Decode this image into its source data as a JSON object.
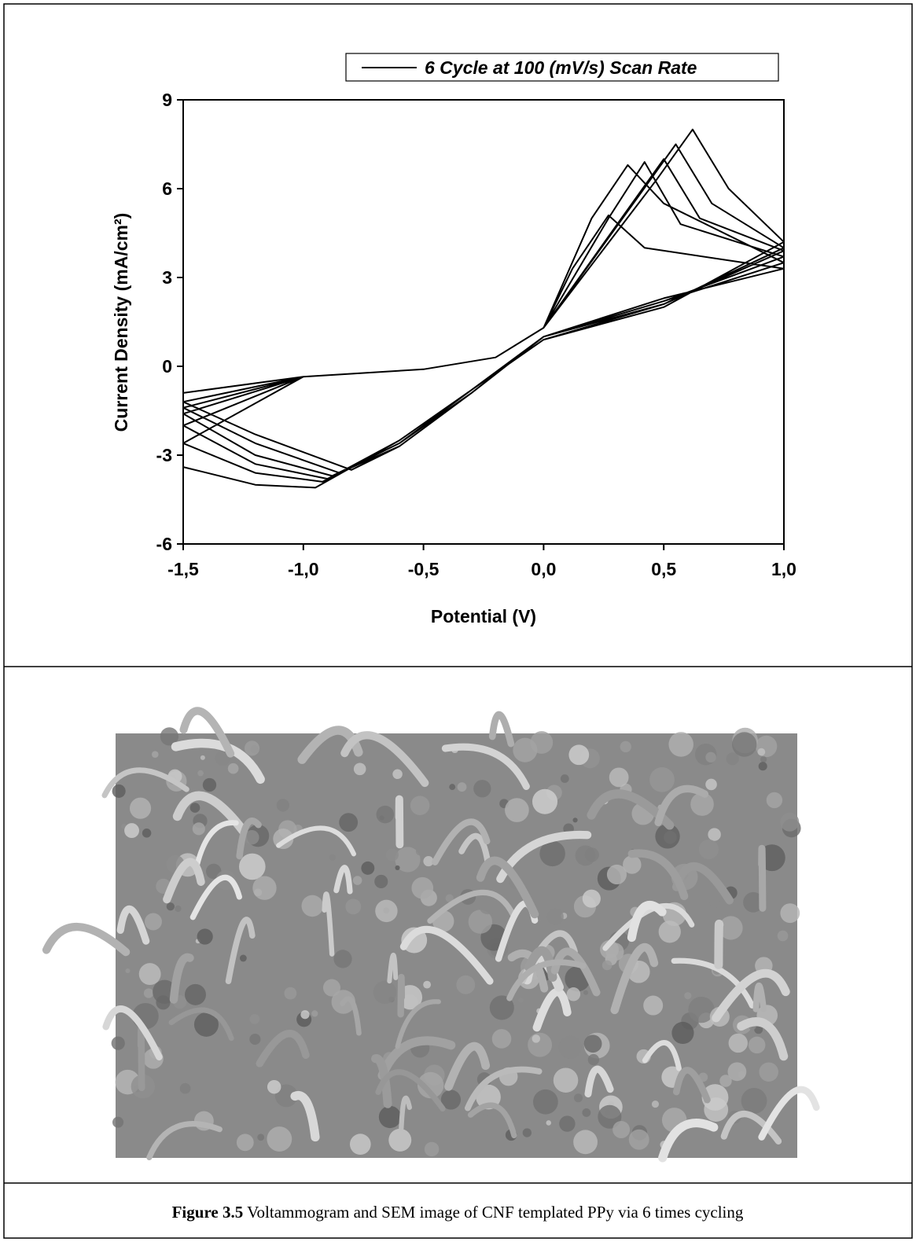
{
  "chart_data": {
    "type": "line",
    "xlabel": "Potential (V)",
    "ylabel": "Current Density (mA/cm²)",
    "xlim": [
      -1.5,
      1.0
    ],
    "ylim": [
      -6,
      9
    ],
    "xticks": [
      {
        "value": -1.5,
        "label": "-1,5"
      },
      {
        "value": -1.0,
        "label": "-1,0"
      },
      {
        "value": -0.5,
        "label": "-0,5"
      },
      {
        "value": 0.0,
        "label": "0,0"
      },
      {
        "value": 0.5,
        "label": "0,5"
      },
      {
        "value": 1.0,
        "label": "1,0"
      }
    ],
    "yticks": [
      -6,
      -3,
      0,
      3,
      6,
      9
    ],
    "legend": "top-right",
    "series": [
      {
        "name": "6 Cycle at 100 (mV/s) Scan Rate",
        "color": "#000000",
        "x": [
          -1.5,
          -1.0,
          -0.5,
          -0.2,
          0.0,
          0.12,
          0.27,
          0.42,
          1.0,
          0.5,
          0.0,
          -0.3,
          -0.6,
          -0.8,
          -1.2,
          -1.5,
          -1.0,
          -0.5,
          -0.2,
          0.0,
          0.2,
          0.35,
          0.5,
          1.0,
          0.5,
          0.0,
          -0.3,
          -0.6,
          -0.85,
          -1.2,
          -1.5,
          -1.0,
          -0.5,
          -0.2,
          0.0,
          0.27,
          0.42,
          0.57,
          1.0,
          0.5,
          0.0,
          -0.3,
          -0.6,
          -0.88,
          -1.2,
          -1.5,
          -1.0,
          -0.5,
          -0.2,
          0.0,
          0.35,
          0.5,
          0.65,
          1.0,
          0.5,
          0.0,
          -0.3,
          -0.6,
          -0.9,
          -1.2,
          -1.5,
          -1.0,
          -0.5,
          -0.2,
          0.0,
          0.4,
          0.55,
          0.7,
          1.0,
          0.5,
          0.0,
          -0.3,
          -0.6,
          -0.92,
          -1.2,
          -1.5,
          -1.0,
          -0.5,
          -0.2,
          0.0,
          0.47,
          0.62,
          0.77,
          1.0,
          0.5,
          0.0,
          -0.3,
          -0.6,
          -0.95,
          -1.2,
          -1.5
        ],
        "values": [
          -0.9,
          -0.35,
          -0.1,
          0.3,
          1.3,
          3.3,
          5.1,
          4.0,
          3.3,
          2.3,
          1.0,
          -0.9,
          -2.7,
          -3.5,
          -2.3,
          -1.2,
          -0.35,
          -0.1,
          0.3,
          1.3,
          5.0,
          6.8,
          5.5,
          3.5,
          2.2,
          1.0,
          -0.9,
          -2.7,
          -3.6,
          -2.6,
          -1.4,
          -0.35,
          -0.1,
          0.3,
          1.3,
          5.0,
          6.9,
          4.8,
          3.7,
          2.2,
          1.0,
          -0.9,
          -2.6,
          -3.7,
          -3.0,
          -1.6,
          -0.35,
          -0.1,
          0.3,
          1.3,
          5.3,
          7.0,
          5.0,
          3.9,
          2.1,
          1.0,
          -0.8,
          -2.6,
          -3.8,
          -3.3,
          -2.0,
          -0.35,
          -0.1,
          0.3,
          1.3,
          5.8,
          7.5,
          5.5,
          4.0,
          2.1,
          0.9,
          -0.8,
          -2.5,
          -3.9,
          -3.6,
          -2.6,
          -0.35,
          -0.1,
          0.3,
          1.3,
          6.3,
          8.0,
          6.0,
          4.2,
          2.0,
          0.9,
          -0.8,
          -2.5,
          -4.1,
          -4.0,
          -3.4
        ]
      }
    ]
  },
  "caption": {
    "label": "Figure 3.5",
    "text": " Voltammogram and SEM image of CNF templated PPy via 6 times cycling"
  }
}
